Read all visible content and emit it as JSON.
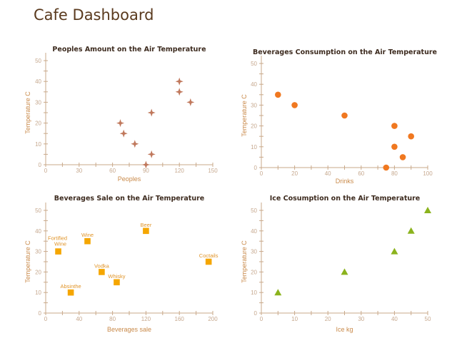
{
  "page": {
    "title": "Cafe Dashboard"
  },
  "colors": {
    "title": "#5a3a1e",
    "axis": "#c9a98a",
    "tick_text": "#c6a88e",
    "axis_label": "#c98a4a",
    "star": "#c0785c",
    "dot": "#f07820",
    "square": "#f5a600",
    "triangle": "#8bb31d"
  },
  "chart_data": [
    {
      "type": "scatter",
      "marker": "star",
      "title": "Peoples Amount on the Air Temperature",
      "xlabel": "Peoples",
      "ylabel": "Temperature C",
      "xlim": [
        0,
        150
      ],
      "ylim": [
        0,
        50
      ],
      "xticks": [
        0,
        30,
        60,
        90,
        120,
        150
      ],
      "yticks": [
        0,
        10,
        20,
        30,
        40,
        50
      ],
      "points": [
        {
          "x": 67,
          "y": 20
        },
        {
          "x": 70,
          "y": 15
        },
        {
          "x": 80,
          "y": 10
        },
        {
          "x": 90,
          "y": 0
        },
        {
          "x": 95,
          "y": 5
        },
        {
          "x": 95,
          "y": 25
        },
        {
          "x": 120,
          "y": 40
        },
        {
          "x": 120,
          "y": 35
        },
        {
          "x": 130,
          "y": 30
        }
      ]
    },
    {
      "type": "scatter",
      "marker": "circle",
      "title": "Beverages Consumption on the Air Temperature",
      "xlabel": "Drinks",
      "ylabel": "Temperature C",
      "xlim": [
        0,
        100
      ],
      "ylim": [
        0,
        50
      ],
      "xticks": [
        0,
        20,
        40,
        60,
        80,
        100
      ],
      "yticks": [
        0,
        10,
        20,
        30,
        40,
        50
      ],
      "points": [
        {
          "x": 10,
          "y": 35
        },
        {
          "x": 20,
          "y": 30
        },
        {
          "x": 50,
          "y": 25
        },
        {
          "x": 75,
          "y": 0
        },
        {
          "x": 80,
          "y": 20
        },
        {
          "x": 80,
          "y": 10
        },
        {
          "x": 85,
          "y": 5
        },
        {
          "x": 90,
          "y": 15
        }
      ]
    },
    {
      "type": "scatter",
      "marker": "square",
      "title": "Beverages Sale on the Air Temperature",
      "xlabel": "Beverages sale",
      "ylabel": "Temperature C",
      "xlim": [
        0,
        200
      ],
      "ylim": [
        0,
        50
      ],
      "xticks": [
        0,
        40,
        80,
        120,
        160,
        200
      ],
      "yticks": [
        0,
        10,
        20,
        30,
        40,
        50
      ],
      "points": [
        {
          "x": 15,
          "y": 30,
          "label": "Fortified Wine"
        },
        {
          "x": 30,
          "y": 10,
          "label": "Absinthe"
        },
        {
          "x": 50,
          "y": 35,
          "label": "Wine"
        },
        {
          "x": 67,
          "y": 20,
          "label": "Vodka"
        },
        {
          "x": 85,
          "y": 15,
          "label": "Whisky"
        },
        {
          "x": 120,
          "y": 40,
          "label": "Beer"
        },
        {
          "x": 195,
          "y": 25,
          "label": "Coctails"
        }
      ]
    },
    {
      "type": "scatter",
      "marker": "triangle",
      "title": "Ice Cosumption on the Air Temperature",
      "xlabel": "Ice kg",
      "ylabel": "Temperature C",
      "xlim": [
        0,
        50
      ],
      "ylim": [
        0,
        50
      ],
      "xticks": [
        0,
        10,
        20,
        30,
        40,
        50
      ],
      "yticks": [
        0,
        10,
        20,
        30,
        40,
        50
      ],
      "points": [
        {
          "x": 5,
          "y": 10
        },
        {
          "x": 25,
          "y": 20
        },
        {
          "x": 40,
          "y": 30
        },
        {
          "x": 45,
          "y": 40
        },
        {
          "x": 50,
          "y": 50
        }
      ]
    }
  ]
}
